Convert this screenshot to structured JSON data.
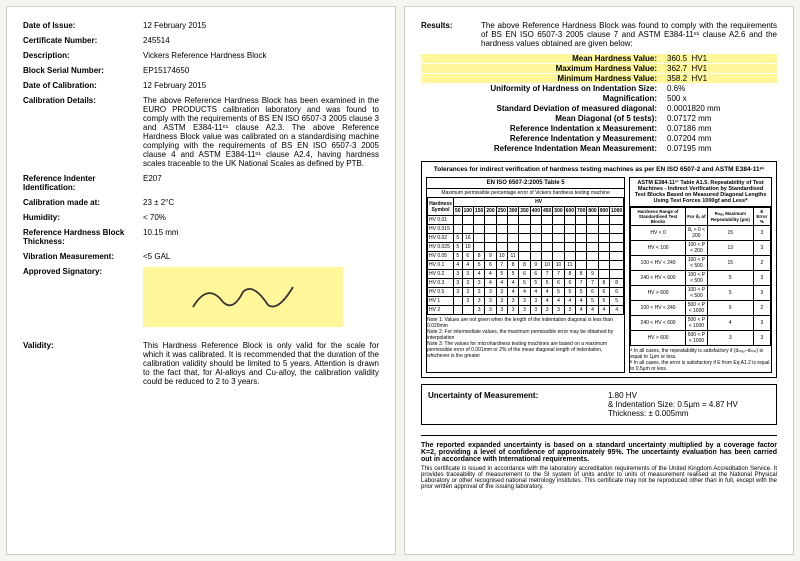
{
  "left": {
    "dateOfIssue": {
      "label": "Date of Issue:",
      "value": "12 February 2015"
    },
    "certNo": {
      "label": "Certificate Number:",
      "value": "245514"
    },
    "description": {
      "label": "Description:",
      "value": "Vickers Reference Hardness Block"
    },
    "serial": {
      "label": "Block Serial Number:",
      "value": "EP15174650"
    },
    "dateCal": {
      "label": "Date of Calibration:",
      "value": "12 February 2015"
    },
    "calDetails": {
      "label": "Calibration Details:",
      "value": "The above Reference Hardness Block has been examined in the EURO PRODUCTS calibration laboratory and was found to comply with the requirements of BS EN ISO 6507-3 2005 clause 3 and ASTM E384-11ᵉ¹ clause A2.3. The above Reference Hardness Block value was calibrated on a standardising machine complying with the requirements of BS EN ISO 6507-3 2005 clause 4 and ASTM E384-11ᵉ¹ clause A2.4, having hardness scales traceable to the UK National Scales as defined by PTB."
    },
    "indenter": {
      "label": "Reference Indenter Identification:",
      "value": "E207"
    },
    "calMade": {
      "label": "Calibration made at:",
      "value": "23 ± 2°C"
    },
    "humidity": {
      "label": "Humidity:",
      "value": "< 70%"
    },
    "thickness": {
      "label": "Reference Hardness Block Thickness:",
      "value": "10.15 mm"
    },
    "vibration": {
      "label": "Vibration Measurement:",
      "value": "<5 GAL"
    },
    "signatory": {
      "label": "Approved Signatory:"
    },
    "validity": {
      "label": "Validity:",
      "value": "This Hardness Reference Block is only valid for the scale for which it was calibrated. It is recommended that the duration of the calibration validity should be limited to 5 years. Attention is drawn to the fact that, for Al-alloys and Cu-alloy, the calibration validity could be reduced to 2 to 3 years."
    }
  },
  "right": {
    "resultsLabel": "Results:",
    "resultsIntro": "The above Reference Hardness Block was found to comply with the requirements of BS EN ISO 6507-3 2005 clause 7 and ASTM E384-11ᵉ¹ clause A2.6 and the hardness values obtained are given below:",
    "mean": {
      "label": "Mean Hardness Value:",
      "v": "360.5",
      "u": "HV1"
    },
    "max": {
      "label": "Maximum Hardness Value:",
      "v": "362.7",
      "u": "HV1"
    },
    "min": {
      "label": "Minimum Hardness Value:",
      "v": "358.2",
      "u": "HV1"
    },
    "uniformity": {
      "label": "Uniformity of Hardness on Indentation Size:",
      "v": "0.6%"
    },
    "mag": {
      "label": "Magnification:",
      "v": "500 x"
    },
    "stddev": {
      "label": "Standard Deviation of measured diagonal:",
      "v": "0.0001820 mm"
    },
    "meanDiag": {
      "label": "Mean Diagonal (of 5 tests):",
      "v": "0.07172 mm"
    },
    "refX": {
      "label": "Reference Indentation x Measurement:",
      "v": "0.07186 mm"
    },
    "refY": {
      "label": "Reference Indentation y Measurement:",
      "v": "0.07204 mm"
    },
    "refMean": {
      "label": "Reference Indentation Mean Measurement:",
      "v": "0.07195 mm"
    },
    "tolTitle": "Tolerances for indirect verification of hardness testing machines as per EN ISO 6507-2 and ASTM E384-11ᵉ¹",
    "col1Title": "EN ISO 6507-2:2005 Table 5",
    "col1Sub": "Maximum permissible percentage error of Vickers hardness testing machine",
    "col2Title": "ASTM E384-11ᵉ¹ Table A1.5. Repeatability of Test Machines - Indirect Verification by Standardised Test Blocks Based on Measured Diagonal Lengths Using Test Forces 1000gf and Lessᴬ",
    "t1": {
      "rows": [
        "HV 0.01",
        "HV 0.015",
        "HV 0.02",
        "HV 0.025",
        "HV 0.05",
        "HV 0.1",
        "HV 0.2",
        "HV 0.3",
        "HV 0.5",
        "HV 1",
        "HV 2"
      ],
      "cols": [
        "50",
        "100",
        "150",
        "200",
        "250",
        "300",
        "350",
        "400",
        "450",
        "500",
        "600",
        "700",
        "800",
        "900",
        "1000"
      ],
      "data": [
        [
          "",
          "",
          "",
          "",
          "",
          "",
          "",
          "",
          "",
          "",
          "",
          "",
          "",
          "",
          ""
        ],
        [
          "",
          "",
          "",
          "",
          "",
          "",
          "",
          "",
          "",
          "",
          "",
          "",
          "",
          "",
          ""
        ],
        [
          "5",
          "16",
          "",
          "",
          "",
          "",
          "",
          "",
          "",
          "",
          "",
          "",
          "",
          "",
          ""
        ],
        [
          "5",
          "10",
          "",
          "",
          "",
          "",
          "",
          "",
          "",
          "",
          "",
          "",
          "",
          "",
          ""
        ],
        [
          "5",
          "6",
          "8",
          "9",
          "10",
          "11",
          "",
          "",
          "",
          "",
          "",
          "",
          "",
          "",
          ""
        ],
        [
          "4",
          "4",
          "5",
          "6",
          "7",
          "8",
          "8",
          "9",
          "10",
          "10",
          "11",
          "",
          "",
          "",
          ""
        ],
        [
          "3",
          "3",
          "4",
          "4",
          "5",
          "5",
          "6",
          "6",
          "7",
          "7",
          "8",
          "8",
          "9",
          "",
          ""
        ],
        [
          "3",
          "3",
          "3",
          "4",
          "4",
          "4",
          "5",
          "5",
          "5",
          "6",
          "6",
          "7",
          "7",
          "8",
          "8"
        ],
        [
          "3",
          "3",
          "3",
          "3",
          "3",
          "4",
          "4",
          "4",
          "4",
          "5",
          "5",
          "5",
          "6",
          "6",
          "6"
        ],
        [
          "",
          "3",
          "3",
          "3",
          "3",
          "3",
          "3",
          "3",
          "4",
          "4",
          "4",
          "4",
          "5",
          "5",
          "5"
        ],
        [
          "",
          "",
          "3",
          "3",
          "3",
          "3",
          "3",
          "3",
          "3",
          "3",
          "3",
          "4",
          "4",
          "4",
          "4"
        ]
      ]
    },
    "t2": {
      "header": [
        "Hardness Range of Standardised Test Blocks",
        "For d̄ᵥ of",
        "Rₘₐₓ Maximum Repeatability (μm)",
        "E Error %"
      ],
      "rows": [
        [
          "HV < 0",
          "d̄ᵥ > 0 < 200",
          "15",
          "3"
        ],
        [
          "HV < 100",
          "100 < P < 200",
          "13",
          "3"
        ],
        [
          "100 < HV < 240",
          "100 < P < 500",
          "15",
          "2"
        ],
        [
          "240 < HV < 600",
          "100 < P < 500",
          "5",
          "3"
        ],
        [
          "HV > 600",
          "100 < P < 500",
          "5",
          "3"
        ],
        [
          "100 < HV < 240",
          "500 < P < 1000",
          "6",
          "2"
        ],
        [
          "240 < HV < 600",
          "500 < P < 1000",
          "4",
          "3"
        ],
        [
          "HV > 600",
          "500 < P < 1000",
          "3",
          "3"
        ]
      ],
      "foot": "ᴬ In all cases, the repeatability is satisfactory if (dₘₐₓ–dₘᵢₙ) is equal to 1μm or less.\nᴮ In all cases, the error is satisfactory if E from Eq A1.2 is equal to 0.5μm or less."
    },
    "notes": "Note 1: Values are not given when the length of the indentation diagonal is less than 0.020mm\nNote 2: For intermediate values, the maximum permissible error may be obtained by interpolation\nNote 3: The values for microhardness testing machines are based on a maximum permissible error of 0.001mm or 2% of the mean diagonal length of indentation, whichever is the greater",
    "unc": {
      "label": "Uncertainty of Measurement:",
      "l1": "1.80 HV",
      "l2": "& Indentation Size: 0.5μm = 4.87 HV",
      "l3": "Thickness: ± 0.005mm"
    },
    "footBold": "The reported expanded uncertainty is based on a standard uncertainty multiplied by a coverage factor K=2, providing a level of confidence of approximately 95%. The uncertainty evaluation has been carried out in accordance with International requirements.",
    "footSmall": "This certificate is issued in accordance with the laboratory accreditation requirements of the United Kingdom Accreditation Service. It provides traceability of measurement to the SI system of units and/or to units of measurement realised at the National Physical Laboratory or other recognised national metrology institutes. This certificate may not be reproduced other than in full, except with the prior written approval of the issuing laboratory."
  }
}
